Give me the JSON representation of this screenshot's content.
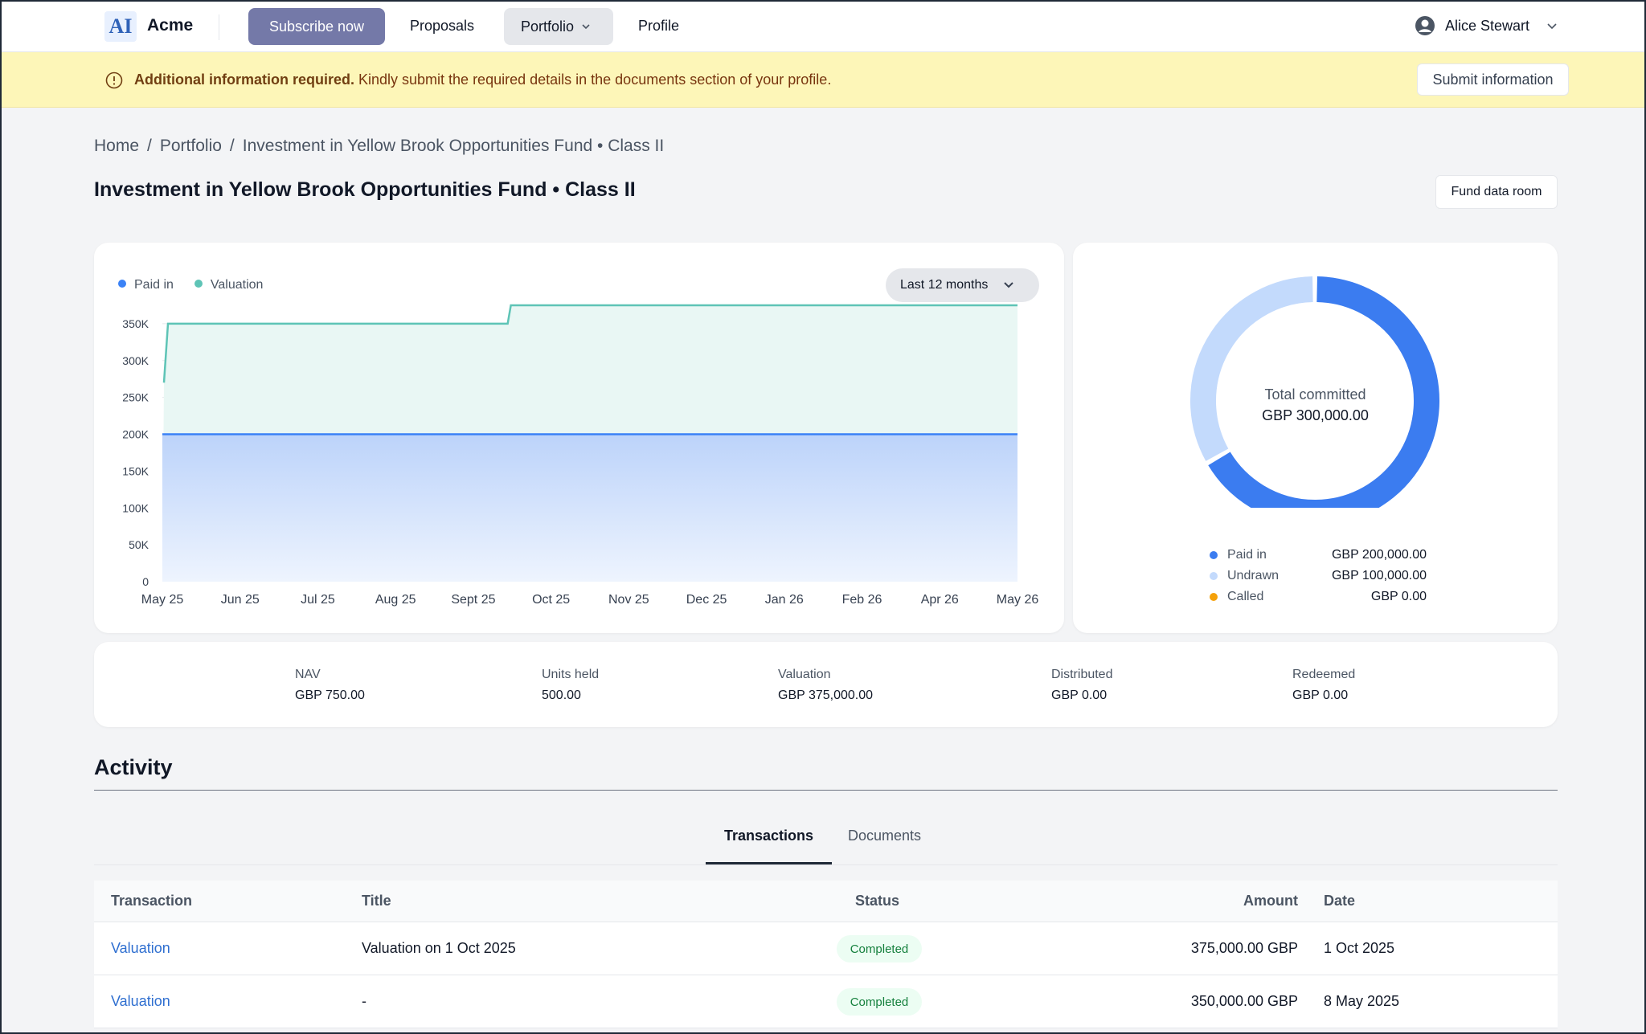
{
  "nav": {
    "logo": "AI",
    "brand": "Acme",
    "subscribe": "Subscribe now",
    "proposals": "Proposals",
    "portfolio": "Portfolio",
    "profile": "Profile",
    "user": "Alice Stewart"
  },
  "banner": {
    "bold": "Additional information required.",
    "text": " Kindly submit the required details in the documents section of your profile.",
    "button": "Submit information"
  },
  "breadcrumb": [
    "Home",
    "/",
    "Portfolio",
    "/",
    "Investment in Yellow Brook Opportunities Fund • Class II"
  ],
  "page_title": "Investment in Yellow Brook Opportunities Fund • Class II",
  "fund_data_room": "Fund data room",
  "chart": {
    "legend_paid": "Paid in",
    "legend_valuation": "Valuation",
    "range": "Last 12 months"
  },
  "chart_data": {
    "type": "area",
    "x": [
      "May 25",
      "Jun 25",
      "Jul 25",
      "Aug 25",
      "Sept 25",
      "Oct 25",
      "Nov 25",
      "Dec 25",
      "Jan 26",
      "Feb 26",
      "Apr 26",
      "May 26"
    ],
    "yticks": [
      "0",
      "50K",
      "100K",
      "150K",
      "200K",
      "250K",
      "300K",
      "350K"
    ],
    "ylim": [
      0,
      375000
    ],
    "series": [
      {
        "name": "Paid in",
        "color": "#3b82f6",
        "points": [
          [
            "May 25",
            200000
          ],
          [
            "May 26",
            200000
          ]
        ]
      },
      {
        "name": "Valuation",
        "color": "#5ec4b6",
        "points": [
          [
            "May 25",
            270000
          ],
          [
            "May 25",
            350000
          ],
          [
            "Oct 25",
            350000
          ],
          [
            "Oct 25",
            375000
          ],
          [
            "May 26",
            375000
          ]
        ]
      }
    ]
  },
  "donut": {
    "center_label": "Total committed",
    "center_value": "GBP 300,000.00",
    "items": [
      {
        "label": "Paid in",
        "value": "GBP 200,000.00",
        "color": "#3b7cf0",
        "amount": 200000
      },
      {
        "label": "Undrawn",
        "value": "GBP 100,000.00",
        "color": "#c3dafc",
        "amount": 100000
      },
      {
        "label": "Called",
        "value": "GBP 0.00",
        "color": "#f5a10a",
        "amount": 0
      }
    ]
  },
  "stats": [
    {
      "label": "NAV",
      "value": "GBP 750.00"
    },
    {
      "label": "Units held",
      "value": "500.00"
    },
    {
      "label": "Valuation",
      "value": "GBP 375,000.00"
    },
    {
      "label": "Distributed",
      "value": "GBP 0.00"
    },
    {
      "label": "Redeemed",
      "value": "GBP 0.00"
    }
  ],
  "activity": {
    "title": "Activity",
    "tab_transactions": "Transactions",
    "tab_documents": "Documents",
    "columns": [
      "Transaction",
      "Title",
      "Status",
      "Amount",
      "Date"
    ],
    "rows": [
      {
        "transaction": "Valuation",
        "title": "Valuation on 1 Oct 2025",
        "status": "Completed",
        "amount": "375,000.00 GBP",
        "date": "1 Oct 2025"
      },
      {
        "transaction": "Valuation",
        "title": "-",
        "status": "Completed",
        "amount": "350,000.00 GBP",
        "date": "8 May 2025"
      }
    ]
  }
}
